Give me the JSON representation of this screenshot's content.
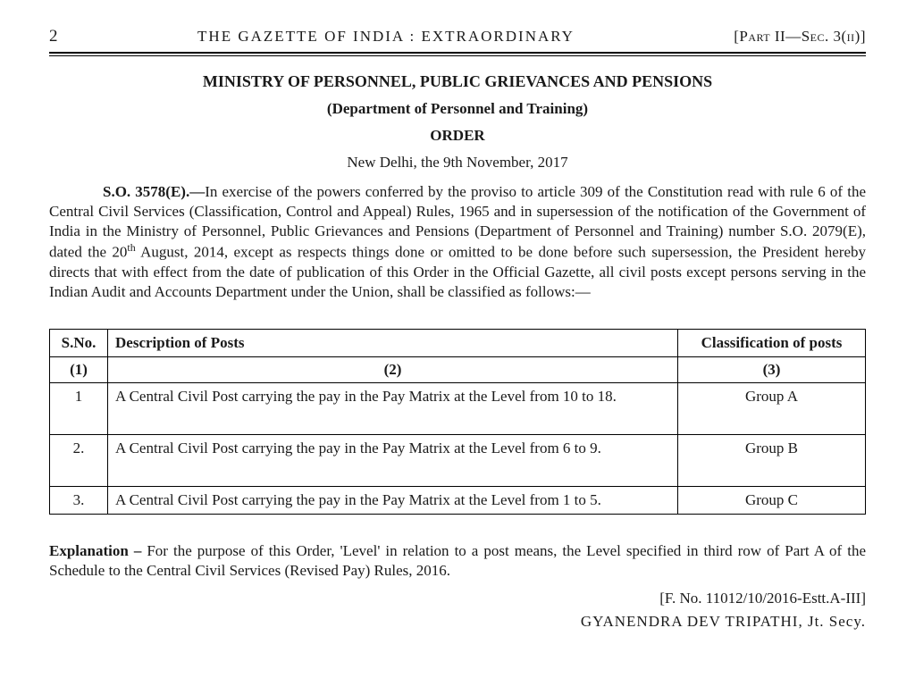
{
  "header": {
    "page_no": "2",
    "center": "THE  GAZETTE  OF  INDIA : EXTRAORDINARY",
    "right_part": "Part II",
    "right_sec": "Sec. 3(ii)"
  },
  "titles": {
    "ministry": "MINISTRY OF PERSONNEL, PUBLIC GRIEVANCES AND PENSIONS",
    "department": "(Department of Personnel and Training)",
    "order": "ORDER",
    "date_line": "New Delhi, the 9th November, 2017"
  },
  "order_para": {
    "so_lead": "S.O. 3578(E).—",
    "text_before_sup": "In exercise of the powers conferred by the proviso to article 309 of the Constitution read with rule 6 of the Central Civil Services (Classification, Control and Appeal) Rules, 1965 and in supersession of the notification of the Government of India in the Ministry of Personnel, Public Grievances and Pensions (Department of Personnel and Training) number S.O. 2079(E), dated the 20",
    "sup": "th",
    "text_after_sup": " August, 2014, except as respects things done or omitted to be done before such supersession, the President hereby directs that with effect from the date of publication of this Order in the Official Gazette, all civil posts except persons serving in the Indian Audit and Accounts Department under the Union, shall be classified as follows:—"
  },
  "table": {
    "headers": {
      "sno": "S.No.",
      "desc": "Description of Posts",
      "class": "Classification of posts"
    },
    "subheaders": {
      "sno": "(1)",
      "desc": "(2)",
      "class": "(3)"
    },
    "rows": [
      {
        "sno": "1",
        "desc": "A Central Civil Post carrying the pay in the Pay Matrix at the Level from 10 to 18.",
        "class": "Group A"
      },
      {
        "sno": "2.",
        "desc": "A Central Civil Post carrying the pay in the Pay Matrix at the Level from 6 to 9.",
        "class": "Group B"
      },
      {
        "sno": "3.",
        "desc": "A Central Civil Post carrying the pay in the Pay Matrix at the Level from 1 to 5.",
        "class": "Group C"
      }
    ]
  },
  "explanation": {
    "lead": "Explanation – ",
    "text": "For the purpose of this Order, 'Level' in relation to a post means, the Level specified in third row of Part A of the Schedule to the Central Civil Services (Revised Pay) Rules, 2016."
  },
  "footer": {
    "file_no": "[F. No. 11012/10/2016-Estt.A-III]",
    "signatory": "GYANENDRA DEV TRIPATHI, Jt. Secy."
  }
}
